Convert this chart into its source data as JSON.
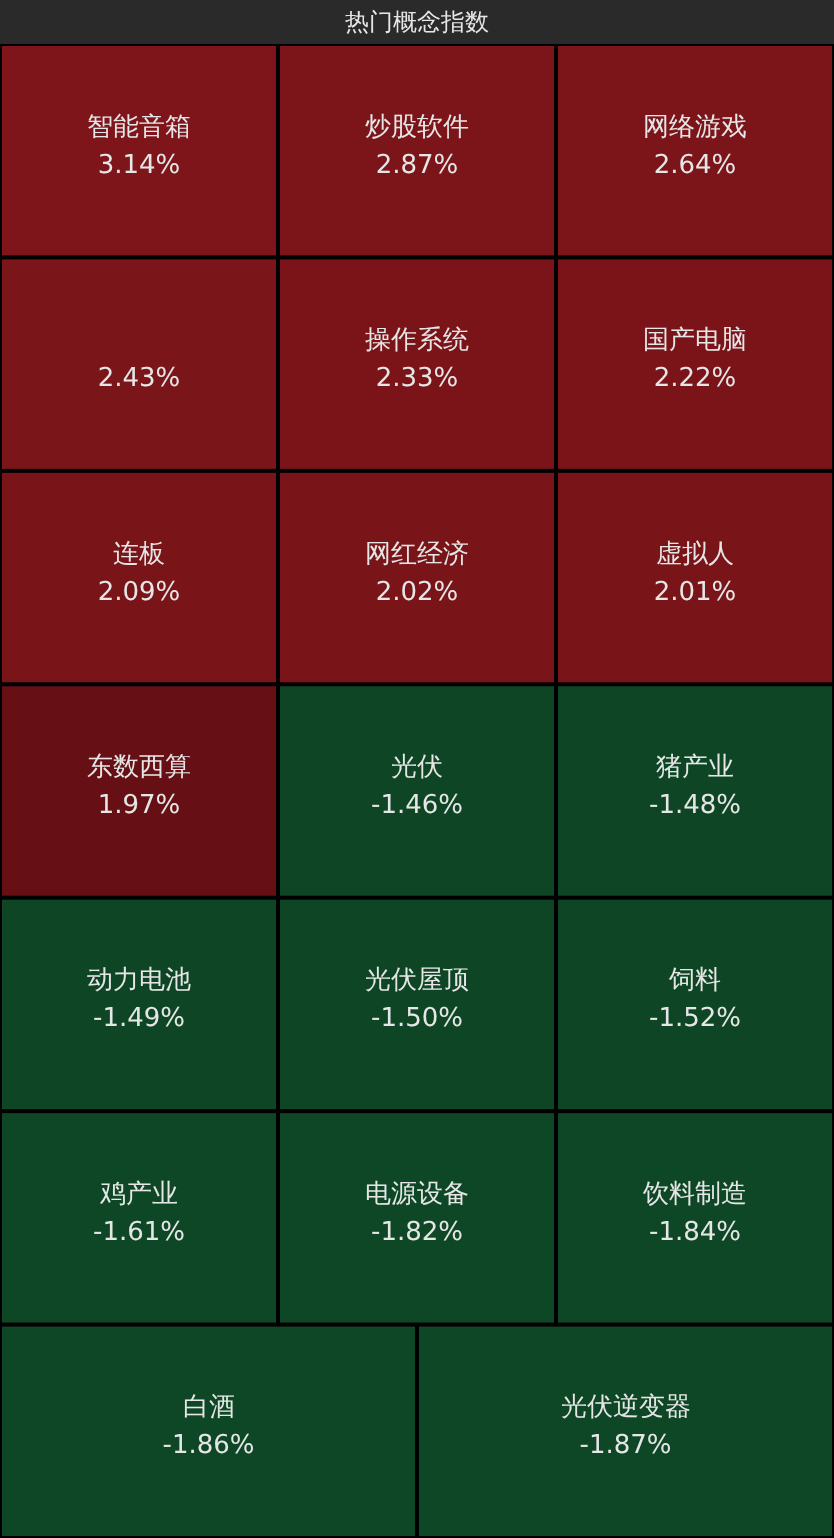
{
  "chart_data": {
    "type": "other",
    "title": "热门概念指数",
    "categories": [
      "智能音箱",
      "炒股软件",
      "网络游戏",
      null,
      "操作系统",
      "国产电脑",
      "连板",
      "网红经济",
      "虚拟人",
      "东数西算",
      "光伏",
      "猪产业",
      "动力电池",
      "光伏屋顶",
      "饲料",
      "鸡产业",
      "电源设备",
      "饮料制造",
      "白酒",
      "光伏逆变器"
    ],
    "values": [
      3.14,
      2.87,
      2.64,
      2.43,
      2.33,
      2.22,
      2.09,
      2.02,
      2.01,
      1.97,
      -1.46,
      -1.48,
      -1.49,
      -1.5,
      -1.52,
      -1.61,
      -1.82,
      -1.84,
      -1.86,
      -1.87
    ],
    "value_labels": [
      "3.14%",
      "2.87%",
      "2.64%",
      "2.43%",
      "2.33%",
      "2.22%",
      "2.09%",
      "2.02%",
      "2.01%",
      "1.97%",
      "-1.46%",
      "-1.48%",
      "-1.49%",
      "-1.50%",
      "-1.52%",
      "-1.61%",
      "-1.82%",
      "-1.84%",
      "-1.86%",
      "-1.87%"
    ],
    "colors": [
      "#7d151a",
      "#7d151a",
      "#7d151a",
      "#7d151a",
      "#7d151a",
      "#7d151a",
      "#7d151a",
      "#7d151a",
      "#7d151a",
      "#6a1116",
      "#0f4a27",
      "#0f4a27",
      "#0f4a27",
      "#0f4a27",
      "#0f4a27",
      "#0f4a27",
      "#0f4a27",
      "#0f4a27",
      "#0f4a27",
      "#0f4a27"
    ]
  }
}
